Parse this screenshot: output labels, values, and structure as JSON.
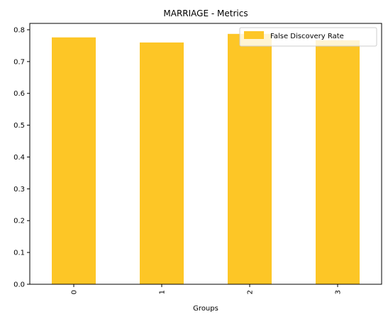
{
  "chart_data": {
    "type": "bar",
    "title": "MARRIAGE - Metrics",
    "xlabel": "Groups",
    "ylabel": "",
    "categories": [
      "0",
      "1",
      "2",
      "3"
    ],
    "series": [
      {
        "name": "False Discovery Rate",
        "values": [
          0.776,
          0.76,
          0.787,
          0.767
        ],
        "color": "#fdc626"
      }
    ],
    "ylim": [
      0,
      0.82
    ],
    "yticks": [
      0.0,
      0.1,
      0.2,
      0.3,
      0.4,
      0.5,
      0.6,
      0.7,
      0.8
    ],
    "ytick_labels": [
      "0.0",
      "0.1",
      "0.2",
      "0.3",
      "0.4",
      "0.5",
      "0.6",
      "0.7",
      "0.8"
    ],
    "grid": false,
    "legend_position": "top-right",
    "xtick_rotation": "vertical"
  }
}
